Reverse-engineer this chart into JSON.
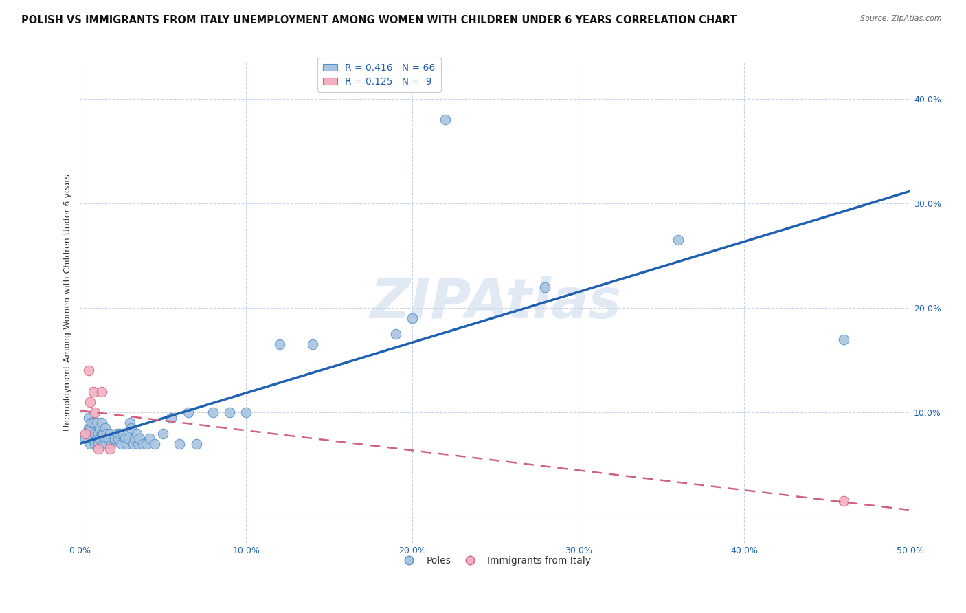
{
  "title": "POLISH VS IMMIGRANTS FROM ITALY UNEMPLOYMENT AMONG WOMEN WITH CHILDREN UNDER 6 YEARS CORRELATION CHART",
  "source": "Source: ZipAtlas.com",
  "ylabel": "Unemployment Among Women with Children Under 6 years",
  "watermark": "ZIPAtlas",
  "xlim": [
    0.0,
    0.5
  ],
  "ylim": [
    -0.025,
    0.435
  ],
  "xticks": [
    0.0,
    0.1,
    0.2,
    0.3,
    0.4,
    0.5
  ],
  "yticks": [
    0.0,
    0.1,
    0.2,
    0.3,
    0.4
  ],
  "xtick_labels": [
    "0.0%",
    "10.0%",
    "20.0%",
    "30.0%",
    "40.0%",
    "50.0%"
  ],
  "ytick_labels": [
    "",
    "10.0%",
    "20.0%",
    "30.0%",
    "40.0%"
  ],
  "legend_labels": [
    "Poles",
    "Immigrants from Italy"
  ],
  "R_poles": 0.416,
  "N_poles": 66,
  "R_italy": 0.125,
  "N_italy": 9,
  "poles_color": "#aac4e0",
  "poles_edge_color": "#5090c8",
  "italy_color": "#f4b0c0",
  "italy_edge_color": "#d06080",
  "poles_line_color": "#2060b0",
  "italy_line_color": "#d06080",
  "poles_x": [
    0.003,
    0.004,
    0.005,
    0.005,
    0.006,
    0.006,
    0.007,
    0.007,
    0.008,
    0.008,
    0.009,
    0.009,
    0.01,
    0.01,
    0.011,
    0.011,
    0.012,
    0.012,
    0.013,
    0.013,
    0.014,
    0.014,
    0.015,
    0.015,
    0.016,
    0.016,
    0.017,
    0.018,
    0.019,
    0.02,
    0.021,
    0.022,
    0.023,
    0.024,
    0.025,
    0.026,
    0.027,
    0.028,
    0.029,
    0.03,
    0.031,
    0.032,
    0.033,
    0.034,
    0.035,
    0.036,
    0.038,
    0.04,
    0.042,
    0.045,
    0.05,
    0.055,
    0.06,
    0.065,
    0.07,
    0.08,
    0.09,
    0.1,
    0.12,
    0.14,
    0.19,
    0.2,
    0.22,
    0.28,
    0.36,
    0.46
  ],
  "poles_y": [
    0.075,
    0.08,
    0.085,
    0.095,
    0.07,
    0.085,
    0.075,
    0.09,
    0.075,
    0.09,
    0.07,
    0.08,
    0.075,
    0.09,
    0.07,
    0.08,
    0.075,
    0.085,
    0.08,
    0.09,
    0.07,
    0.08,
    0.075,
    0.085,
    0.07,
    0.08,
    0.075,
    0.08,
    0.07,
    0.075,
    0.075,
    0.08,
    0.075,
    0.08,
    0.07,
    0.08,
    0.075,
    0.07,
    0.075,
    0.09,
    0.085,
    0.07,
    0.075,
    0.08,
    0.07,
    0.075,
    0.07,
    0.07,
    0.075,
    0.07,
    0.08,
    0.095,
    0.07,
    0.1,
    0.07,
    0.1,
    0.1,
    0.1,
    0.165,
    0.165,
    0.175,
    0.19,
    0.38,
    0.22,
    0.265,
    0.17
  ],
  "italy_x": [
    0.003,
    0.005,
    0.006,
    0.008,
    0.009,
    0.011,
    0.013,
    0.018,
    0.46
  ],
  "italy_y": [
    0.08,
    0.14,
    0.11,
    0.12,
    0.1,
    0.065,
    0.12,
    0.065,
    0.015
  ],
  "title_fontsize": 10.5,
  "axis_fontsize": 9,
  "tick_fontsize": 9,
  "legend_fontsize": 10
}
